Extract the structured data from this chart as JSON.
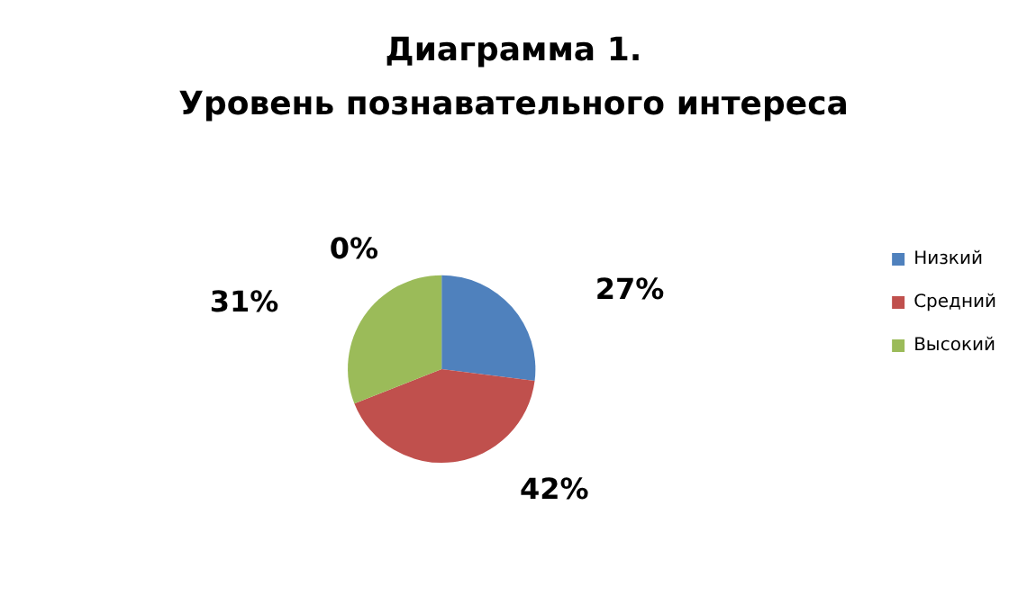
{
  "chart_data": {
    "type": "pie",
    "title": "Диаграмма 1.\nУровень познавательного интереса",
    "categories": [
      "Низкий",
      "Средний",
      "Высокий",
      null
    ],
    "values": [
      27,
      42,
      31,
      0
    ],
    "colors": [
      "#4f81bd",
      "#c0504d",
      "#9bbb59",
      "#8064a2"
    ],
    "value_labels": [
      "27%",
      "42%",
      "31%",
      "0%"
    ],
    "legend": "right"
  }
}
